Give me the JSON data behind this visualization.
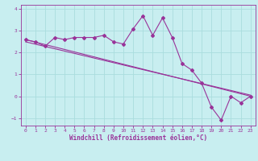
{
  "title": "",
  "xlabel": "Windchill (Refroidissement éolien,°C)",
  "ylabel": "",
  "bg_color": "#c8eef0",
  "line_color": "#993399",
  "grid_color": "#aadddd",
  "xlim": [
    -0.5,
    23.5
  ],
  "ylim": [
    -1.35,
    4.2
  ],
  "yticks": [
    -1,
    0,
    1,
    2,
    3,
    4
  ],
  "xticks": [
    0,
    1,
    2,
    3,
    4,
    5,
    6,
    7,
    8,
    9,
    10,
    11,
    12,
    13,
    14,
    15,
    16,
    17,
    18,
    19,
    20,
    21,
    22,
    23
  ],
  "series1_x": [
    0,
    1,
    2,
    3,
    4,
    5,
    6,
    7,
    8,
    9,
    10,
    11,
    12,
    13,
    14,
    15,
    16,
    17,
    18,
    19,
    20,
    21,
    22,
    23
  ],
  "series1_y": [
    2.6,
    2.5,
    2.3,
    2.7,
    2.6,
    2.7,
    2.7,
    2.7,
    2.8,
    2.5,
    2.4,
    3.1,
    3.7,
    2.8,
    3.6,
    2.7,
    1.5,
    1.2,
    0.6,
    -0.5,
    -1.1,
    0.0,
    -0.3,
    0.0
  ],
  "series2_x": [
    0,
    23
  ],
  "series2_y": [
    2.6,
    0.0
  ],
  "series3_x": [
    0,
    23
  ],
  "series3_y": [
    2.5,
    0.05
  ]
}
